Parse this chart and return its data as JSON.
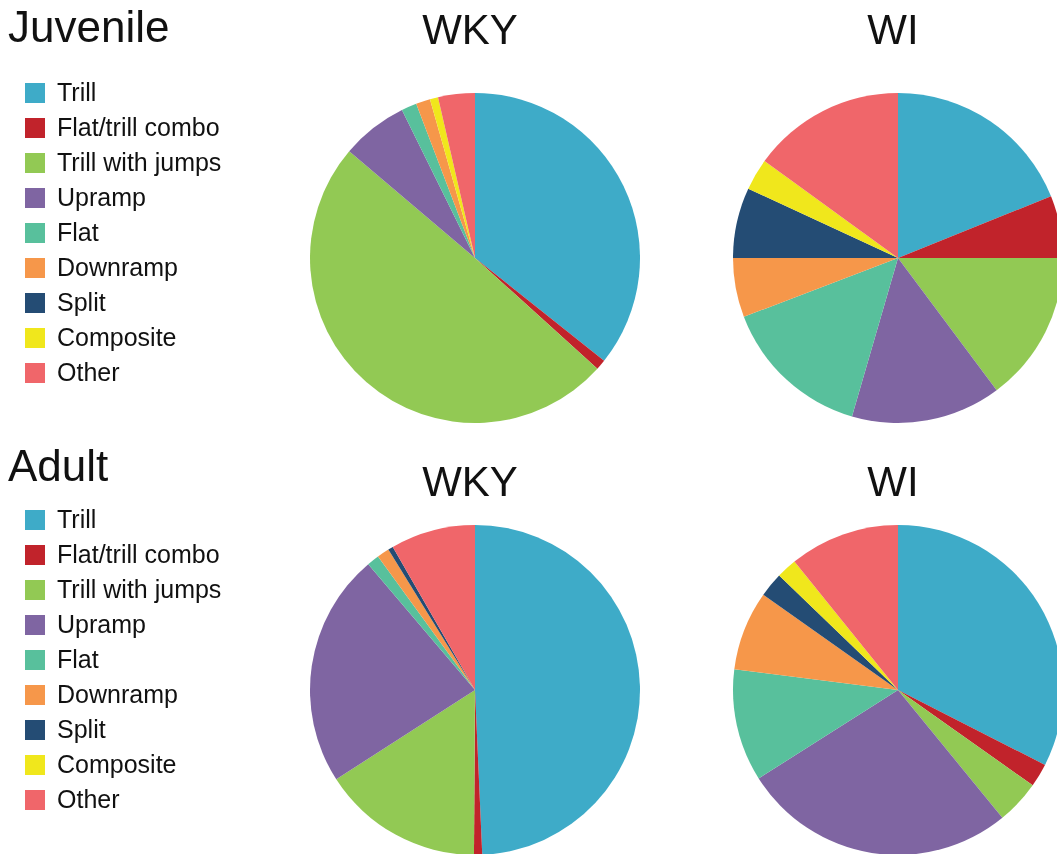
{
  "chart_data": [
    {
      "type": "pie",
      "title": "Juvenile",
      "legend": "left",
      "categories": [
        "Trill",
        "Flat/trill combo",
        "Trill with jumps",
        "Upramp",
        "Flat",
        "Downramp",
        "Split",
        "Composite",
        "Other"
      ],
      "colors": [
        "#3eabc8",
        "#c1232b",
        "#92c954",
        "#7f65a2",
        "#58c09c",
        "#f6974a",
        "#244c74",
        "#f0e71c",
        "#f0666a"
      ],
      "series": [
        {
          "name": "WKY",
          "values": [
            35.7,
            1,
            49.5,
            6.5,
            1.5,
            1.4,
            0,
            0.8,
            3.6
          ]
        },
        {
          "name": "WI",
          "values": [
            18.9,
            6.1,
            14.8,
            14.7,
            14.7,
            5.8,
            6.9,
            3.1,
            15
          ]
        }
      ]
    },
    {
      "type": "pie",
      "title": "Adult",
      "legend": "left",
      "categories": [
        "Trill",
        "Flat/trill combo",
        "Trill with jumps",
        "Upramp",
        "Flat",
        "Downramp",
        "Split",
        "Composite",
        "Other"
      ],
      "colors": [
        "#3eabc8",
        "#c1232b",
        "#92c954",
        "#7f65a2",
        "#58c09c",
        "#f6974a",
        "#244c74",
        "#f0e71c",
        "#f0666a"
      ],
      "series": [
        {
          "name": "WKY",
          "values": [
            49.3,
            0.8,
            15.8,
            22.9,
            1.2,
            1.2,
            0.5,
            0,
            8.3
          ]
        },
        {
          "name": "WI",
          "values": [
            32.5,
            2.3,
            4.3,
            26.9,
            11,
            7.8,
            2.4,
            2,
            10.8
          ]
        }
      ]
    }
  ]
}
